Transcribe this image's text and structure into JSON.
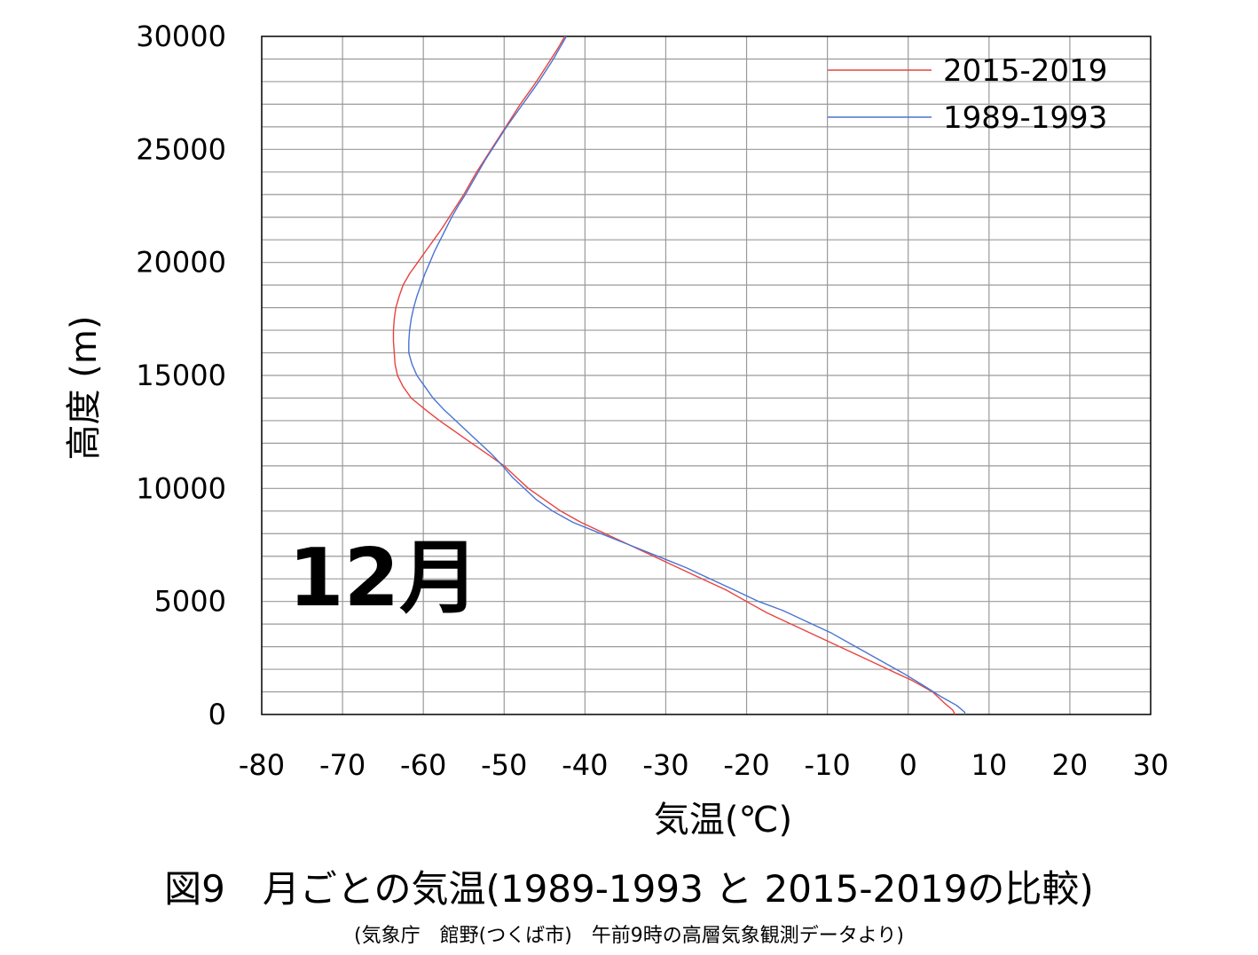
{
  "chart_data": {
    "type": "line",
    "xlabel": "気温(℃)",
    "ylabel": "高度 (m)",
    "xlim": [
      -80,
      30
    ],
    "ylim": [
      0,
      30000
    ],
    "x_major_step": 10,
    "y_label_step": 5000,
    "y_minor_step": 1000,
    "x_tick_labels": [
      "-80",
      "-70",
      "-60",
      "-50",
      "-40",
      "-30",
      "-20",
      "-10",
      "0",
      "10",
      "20",
      "30"
    ],
    "y_tick_labels": [
      "0",
      "5000",
      "10000",
      "15000",
      "20000",
      "25000",
      "30000"
    ],
    "grid": true,
    "legend_position": "top-right",
    "annotation": "12月",
    "series": [
      {
        "name": "2015-2019",
        "color": "#e8433f",
        "points": [
          [
            5.8,
            0
          ],
          [
            5.5,
            200
          ],
          [
            4.5,
            500
          ],
          [
            3.0,
            1000
          ],
          [
            0.5,
            1500
          ],
          [
            -2.5,
            2000
          ],
          [
            -5.5,
            2500
          ],
          [
            -8.5,
            3000
          ],
          [
            -11.5,
            3500
          ],
          [
            -14.5,
            4000
          ],
          [
            -17.5,
            4500
          ],
          [
            -20.0,
            5000
          ],
          [
            -22.5,
            5500
          ],
          [
            -25.5,
            6000
          ],
          [
            -28.5,
            6500
          ],
          [
            -31.5,
            7000
          ],
          [
            -34.5,
            7500
          ],
          [
            -37.5,
            8000
          ],
          [
            -40.5,
            8500
          ],
          [
            -43.0,
            9000
          ],
          [
            -45.0,
            9500
          ],
          [
            -47.0,
            10000
          ],
          [
            -48.5,
            10500
          ],
          [
            -50.0,
            11000
          ],
          [
            -52.0,
            11500
          ],
          [
            -54.0,
            12000
          ],
          [
            -56.0,
            12500
          ],
          [
            -58.0,
            13000
          ],
          [
            -59.8,
            13500
          ],
          [
            -61.5,
            14000
          ],
          [
            -62.5,
            14500
          ],
          [
            -63.2,
            15000
          ],
          [
            -63.5,
            15500
          ],
          [
            -63.6,
            16000
          ],
          [
            -63.7,
            16500
          ],
          [
            -63.7,
            17000
          ],
          [
            -63.6,
            17500
          ],
          [
            -63.4,
            18000
          ],
          [
            -63.0,
            18500
          ],
          [
            -62.5,
            19000
          ],
          [
            -61.7,
            19500
          ],
          [
            -60.7,
            20000
          ],
          [
            -59.7,
            20500
          ],
          [
            -58.7,
            21000
          ],
          [
            -57.7,
            21500
          ],
          [
            -56.8,
            22000
          ],
          [
            -55.9,
            22500
          ],
          [
            -55.0,
            23000
          ],
          [
            -54.2,
            23500
          ],
          [
            -53.4,
            24000
          ],
          [
            -52.5,
            24500
          ],
          [
            -51.6,
            25000
          ],
          [
            -50.7,
            25500
          ],
          [
            -49.8,
            26000
          ],
          [
            -48.9,
            26500
          ],
          [
            -48.0,
            27000
          ],
          [
            -47.0,
            27500
          ],
          [
            -46.0,
            28000
          ],
          [
            -45.1,
            28500
          ],
          [
            -44.2,
            29000
          ],
          [
            -43.3,
            29500
          ],
          [
            -42.5,
            30000
          ]
        ]
      },
      {
        "name": "1989-1993",
        "color": "#4a73d2",
        "points": [
          [
            7.0,
            0
          ],
          [
            7.0,
            100
          ],
          [
            6.0,
            400
          ],
          [
            4.0,
            800
          ],
          [
            1.8,
            1300
          ],
          [
            -0.5,
            1800
          ],
          [
            -3.5,
            2400
          ],
          [
            -6.5,
            3000
          ],
          [
            -9.5,
            3600
          ],
          [
            -12.5,
            4100
          ],
          [
            -15.5,
            4600
          ],
          [
            -18.5,
            5000
          ],
          [
            -21.5,
            5500
          ],
          [
            -24.5,
            6000
          ],
          [
            -27.5,
            6500
          ],
          [
            -31.0,
            7000
          ],
          [
            -34.5,
            7500
          ],
          [
            -38.0,
            8000
          ],
          [
            -41.5,
            8500
          ],
          [
            -44.0,
            9000
          ],
          [
            -46.0,
            9500
          ],
          [
            -47.5,
            10000
          ],
          [
            -49.0,
            10500
          ],
          [
            -50.2,
            11000
          ],
          [
            -51.5,
            11500
          ],
          [
            -53.0,
            12000
          ],
          [
            -54.5,
            12500
          ],
          [
            -56.0,
            13000
          ],
          [
            -57.5,
            13500
          ],
          [
            -58.8,
            14000
          ],
          [
            -59.8,
            14500
          ],
          [
            -60.8,
            15000
          ],
          [
            -61.4,
            15500
          ],
          [
            -61.8,
            16000
          ],
          [
            -61.8,
            16500
          ],
          [
            -61.7,
            17000
          ],
          [
            -61.5,
            17500
          ],
          [
            -61.2,
            18000
          ],
          [
            -60.8,
            18500
          ],
          [
            -60.3,
            19000
          ],
          [
            -59.8,
            19500
          ],
          [
            -59.2,
            20000
          ],
          [
            -58.6,
            20500
          ],
          [
            -57.9,
            21000
          ],
          [
            -57.2,
            21500
          ],
          [
            -56.5,
            22000
          ],
          [
            -55.7,
            22500
          ],
          [
            -54.8,
            23000
          ],
          [
            -54.0,
            23500
          ],
          [
            -53.2,
            24000
          ],
          [
            -52.4,
            24500
          ],
          [
            -51.5,
            25000
          ],
          [
            -50.6,
            25500
          ],
          [
            -49.7,
            26000
          ],
          [
            -48.7,
            26500
          ],
          [
            -47.7,
            27000
          ],
          [
            -46.7,
            27500
          ],
          [
            -45.7,
            28000
          ],
          [
            -44.8,
            28500
          ],
          [
            -43.9,
            29000
          ],
          [
            -43.1,
            29500
          ],
          [
            -42.3,
            30000
          ]
        ]
      }
    ]
  },
  "caption": {
    "title": "図9　月ごとの気温(1989-1993 と 2015-2019の比較)",
    "source": "(気象庁　館野(つくば市)　午前9時の高層気象観測データより)"
  }
}
